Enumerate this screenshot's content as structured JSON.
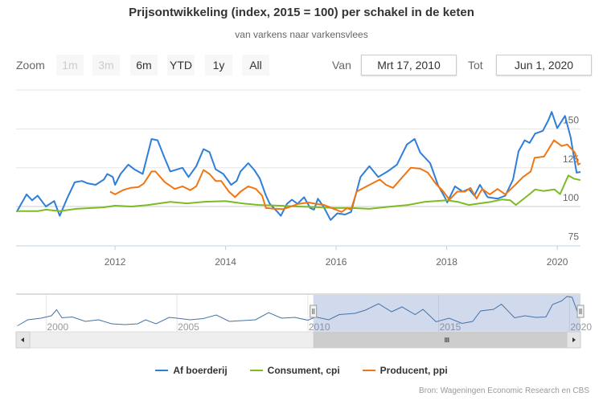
{
  "title": "Prijsontwikkeling (index, 2015 = 100) per schakel in de keten",
  "subtitle": "van varkens naar varkensvlees",
  "range_selector": {
    "zoom_label": "Zoom",
    "buttons": [
      {
        "label": "1m",
        "disabled": true
      },
      {
        "label": "3m",
        "disabled": true
      },
      {
        "label": "6m",
        "disabled": false
      },
      {
        "label": "YTD",
        "disabled": false
      },
      {
        "label": "1y",
        "disabled": false
      },
      {
        "label": "All",
        "disabled": false
      }
    ],
    "from_label": "Van",
    "from_value": "Mrt 17, 2010",
    "to_label": "Tot",
    "to_value": "Jun 1, 2020"
  },
  "credits": "Bron: Wageningen Economic Research en CBS",
  "colors": {
    "blue": "#2f7ed8",
    "green": "#7cbb23",
    "orange": "#f07613"
  },
  "chart_data": {
    "type": "line",
    "title": "Prijsontwikkeling (index, 2015 = 100) per schakel in de keten",
    "xlim": [
      2010.21,
      2020.42
    ],
    "ylim": [
      72,
      165
    ],
    "x_ticks": [
      "2012",
      "2014",
      "2016",
      "2018",
      "2020"
    ],
    "y_ticks": [
      "75",
      "100",
      "125",
      "150"
    ],
    "legend_position": "bottom",
    "series": [
      {
        "name": "Af boerderij",
        "color": "#2f7ed8",
        "points": [
          [
            2010.22,
            96.5
          ],
          [
            2010.4,
            107.8
          ],
          [
            2010.5,
            104
          ],
          [
            2010.6,
            107
          ],
          [
            2010.75,
            100
          ],
          [
            2010.9,
            103.5
          ],
          [
            2011.0,
            94
          ],
          [
            2011.13,
            105
          ],
          [
            2011.27,
            115.6
          ],
          [
            2011.4,
            116.5
          ],
          [
            2011.5,
            115
          ],
          [
            2011.65,
            114
          ],
          [
            2011.8,
            117.4
          ],
          [
            2011.86,
            121
          ],
          [
            2011.96,
            119
          ],
          [
            2012.0,
            114
          ],
          [
            2012.1,
            121
          ],
          [
            2012.24,
            127
          ],
          [
            2012.35,
            124
          ],
          [
            2012.5,
            121
          ],
          [
            2012.66,
            143.5
          ],
          [
            2012.77,
            142.7
          ],
          [
            2012.9,
            131
          ],
          [
            2013.0,
            122.6
          ],
          [
            2013.22,
            125
          ],
          [
            2013.33,
            119
          ],
          [
            2013.47,
            126
          ],
          [
            2013.6,
            137
          ],
          [
            2013.71,
            135
          ],
          [
            2013.82,
            124
          ],
          [
            2013.96,
            121
          ],
          [
            2014.1,
            114
          ],
          [
            2014.2,
            116.5
          ],
          [
            2014.27,
            122.6
          ],
          [
            2014.41,
            128
          ],
          [
            2014.52,
            123.5
          ],
          [
            2014.62,
            118
          ],
          [
            2014.73,
            107
          ],
          [
            2014.8,
            101.7
          ],
          [
            2014.94,
            96.5
          ],
          [
            2015.0,
            94
          ],
          [
            2015.11,
            101.7
          ],
          [
            2015.2,
            104.4
          ],
          [
            2015.3,
            101.7
          ],
          [
            2015.42,
            106
          ],
          [
            2015.53,
            99
          ],
          [
            2015.6,
            98
          ],
          [
            2015.67,
            105
          ],
          [
            2015.77,
            100
          ],
          [
            2015.9,
            91.3
          ],
          [
            2016.02,
            95.6
          ],
          [
            2016.16,
            94.8
          ],
          [
            2016.27,
            96.5
          ],
          [
            2016.44,
            119
          ],
          [
            2016.6,
            126
          ],
          [
            2016.76,
            119
          ],
          [
            2016.93,
            122.6
          ],
          [
            2017.1,
            127
          ],
          [
            2017.28,
            140
          ],
          [
            2017.42,
            143.5
          ],
          [
            2017.52,
            134.8
          ],
          [
            2017.7,
            128
          ],
          [
            2017.84,
            114
          ],
          [
            2017.98,
            105
          ],
          [
            2018.01,
            102.6
          ],
          [
            2018.15,
            113
          ],
          [
            2018.29,
            109.6
          ],
          [
            2018.4,
            111.3
          ],
          [
            2018.5,
            107
          ],
          [
            2018.6,
            114
          ],
          [
            2018.74,
            106
          ],
          [
            2018.92,
            105
          ],
          [
            2019.06,
            107
          ],
          [
            2019.2,
            117.4
          ],
          [
            2019.3,
            135.7
          ],
          [
            2019.41,
            142.7
          ],
          [
            2019.5,
            141
          ],
          [
            2019.6,
            147
          ],
          [
            2019.74,
            148.8
          ],
          [
            2019.84,
            155.7
          ],
          [
            2019.9,
            161
          ],
          [
            2020.0,
            150.5
          ],
          [
            2020.14,
            158.4
          ],
          [
            2020.24,
            145
          ],
          [
            2020.35,
            121.8
          ],
          [
            2020.42,
            122.3
          ]
        ]
      },
      {
        "name": "Consument, cpi",
        "color": "#7cbb23",
        "points": [
          [
            2010.22,
            97
          ],
          [
            2010.6,
            97
          ],
          [
            2010.75,
            98
          ],
          [
            2011.0,
            97
          ],
          [
            2011.3,
            98.5
          ],
          [
            2011.8,
            99.5
          ],
          [
            2012.0,
            100.5
          ],
          [
            2012.3,
            100
          ],
          [
            2012.6,
            101
          ],
          [
            2012.8,
            102
          ],
          [
            2013.0,
            103
          ],
          [
            2013.3,
            102
          ],
          [
            2013.6,
            103
          ],
          [
            2014.0,
            103.5
          ],
          [
            2014.3,
            102
          ],
          [
            2014.6,
            101
          ],
          [
            2015.0,
            100.5
          ],
          [
            2015.3,
            100
          ],
          [
            2015.7,
            99.5
          ],
          [
            2016.0,
            99
          ],
          [
            2016.3,
            99
          ],
          [
            2016.6,
            98.5
          ],
          [
            2017.0,
            100
          ],
          [
            2017.3,
            101
          ],
          [
            2017.6,
            103
          ],
          [
            2018.0,
            104
          ],
          [
            2018.2,
            103
          ],
          [
            2018.4,
            101
          ],
          [
            2018.6,
            102
          ],
          [
            2018.8,
            103
          ],
          [
            2019.0,
            104.5
          ],
          [
            2019.15,
            104
          ],
          [
            2019.25,
            101
          ],
          [
            2019.5,
            108
          ],
          [
            2019.6,
            111
          ],
          [
            2019.75,
            110
          ],
          [
            2019.95,
            111
          ],
          [
            2020.05,
            108
          ],
          [
            2020.2,
            120
          ],
          [
            2020.3,
            118
          ],
          [
            2020.42,
            117
          ]
        ]
      },
      {
        "name": "Producent, ppi",
        "color": "#f07613",
        "points": [
          [
            2011.91,
            109.6
          ],
          [
            2012.0,
            107.8
          ],
          [
            2012.14,
            110.5
          ],
          [
            2012.28,
            112
          ],
          [
            2012.42,
            112.5
          ],
          [
            2012.52,
            114.8
          ],
          [
            2012.66,
            122.6
          ],
          [
            2012.73,
            122.6
          ],
          [
            2012.9,
            115.7
          ],
          [
            2013.08,
            111.3
          ],
          [
            2013.22,
            113
          ],
          [
            2013.36,
            110.5
          ],
          [
            2013.47,
            113
          ],
          [
            2013.6,
            123.5
          ],
          [
            2013.71,
            121
          ],
          [
            2013.82,
            116.5
          ],
          [
            2013.92,
            116.5
          ],
          [
            2014.06,
            109.6
          ],
          [
            2014.17,
            106
          ],
          [
            2014.27,
            109.6
          ],
          [
            2014.41,
            113
          ],
          [
            2014.55,
            111.3
          ],
          [
            2014.66,
            107
          ],
          [
            2014.73,
            99
          ],
          [
            2014.87,
            98.6
          ],
          [
            2015.04,
            98.3
          ],
          [
            2015.18,
            100
          ],
          [
            2015.32,
            101.7
          ],
          [
            2015.5,
            102.6
          ],
          [
            2015.64,
            101.7
          ],
          [
            2015.78,
            101
          ],
          [
            2015.92,
            99
          ],
          [
            2016.1,
            96.5
          ],
          [
            2016.2,
            99
          ],
          [
            2016.27,
            98
          ],
          [
            2016.37,
            109.6
          ],
          [
            2016.5,
            112
          ],
          [
            2016.65,
            114.8
          ],
          [
            2016.79,
            117.4
          ],
          [
            2016.9,
            114
          ],
          [
            2017.03,
            112
          ],
          [
            2017.2,
            119
          ],
          [
            2017.35,
            125
          ],
          [
            2017.52,
            124.4
          ],
          [
            2017.66,
            121.8
          ],
          [
            2017.8,
            114.8
          ],
          [
            2017.94,
            109.6
          ],
          [
            2018.05,
            104.4
          ],
          [
            2018.19,
            109.6
          ],
          [
            2018.33,
            109.6
          ],
          [
            2018.43,
            112
          ],
          [
            2018.54,
            105
          ],
          [
            2018.64,
            111.3
          ],
          [
            2018.78,
            107.8
          ],
          [
            2018.92,
            111.3
          ],
          [
            2019.06,
            107.8
          ],
          [
            2019.24,
            114
          ],
          [
            2019.38,
            119
          ],
          [
            2019.52,
            122.6
          ],
          [
            2019.59,
            131.4
          ],
          [
            2019.76,
            132.2
          ],
          [
            2019.94,
            142.7
          ],
          [
            2020.08,
            139
          ],
          [
            2020.18,
            140
          ],
          [
            2020.32,
            134.8
          ],
          [
            2020.38,
            127
          ],
          [
            2020.42,
            127.9
          ]
        ]
      }
    ],
    "navigator": {
      "x_ticks": [
        "2000",
        "2005",
        "2010",
        "2015",
        "2020"
      ],
      "xlim": [
        1998.85,
        2020.42
      ],
      "selected": [
        2010.21,
        2020.42
      ],
      "points": [
        [
          1998.9,
          85
        ],
        [
          1999.3,
          100
        ],
        [
          1999.8,
          104
        ],
        [
          2000.2,
          110
        ],
        [
          2000.4,
          125
        ],
        [
          2000.6,
          105
        ],
        [
          2001.0,
          107
        ],
        [
          2001.5,
          96
        ],
        [
          2002.0,
          100
        ],
        [
          2002.5,
          90
        ],
        [
          2003.0,
          88
        ],
        [
          2003.5,
          90
        ],
        [
          2003.8,
          100
        ],
        [
          2004.2,
          90
        ],
        [
          2004.7,
          106
        ],
        [
          2005.0,
          104
        ],
        [
          2005.5,
          100
        ],
        [
          2006.0,
          103
        ],
        [
          2006.5,
          112
        ],
        [
          2007.0,
          96
        ],
        [
          2007.5,
          98
        ],
        [
          2008.0,
          100
        ],
        [
          2008.5,
          118
        ],
        [
          2009.0,
          104
        ],
        [
          2009.5,
          106
        ],
        [
          2010.0,
          99
        ],
        [
          2010.3,
          107
        ],
        [
          2010.8,
          100
        ],
        [
          2011.2,
          113
        ],
        [
          2011.8,
          116
        ],
        [
          2012.2,
          124
        ],
        [
          2012.7,
          140
        ],
        [
          2013.2,
          120
        ],
        [
          2013.6,
          132
        ],
        [
          2014.1,
          113
        ],
        [
          2014.4,
          126
        ],
        [
          2014.9,
          95
        ],
        [
          2015.4,
          104
        ],
        [
          2015.9,
          91
        ],
        [
          2016.3,
          96
        ],
        [
          2016.6,
          122
        ],
        [
          2017.1,
          126
        ],
        [
          2017.4,
          139
        ],
        [
          2017.9,
          105
        ],
        [
          2018.3,
          110
        ],
        [
          2018.7,
          106
        ],
        [
          2019.1,
          107
        ],
        [
          2019.35,
          138
        ],
        [
          2019.7,
          147
        ],
        [
          2019.9,
          158
        ],
        [
          2020.1,
          156
        ],
        [
          2020.3,
          120
        ],
        [
          2020.42,
          122
        ]
      ]
    }
  }
}
